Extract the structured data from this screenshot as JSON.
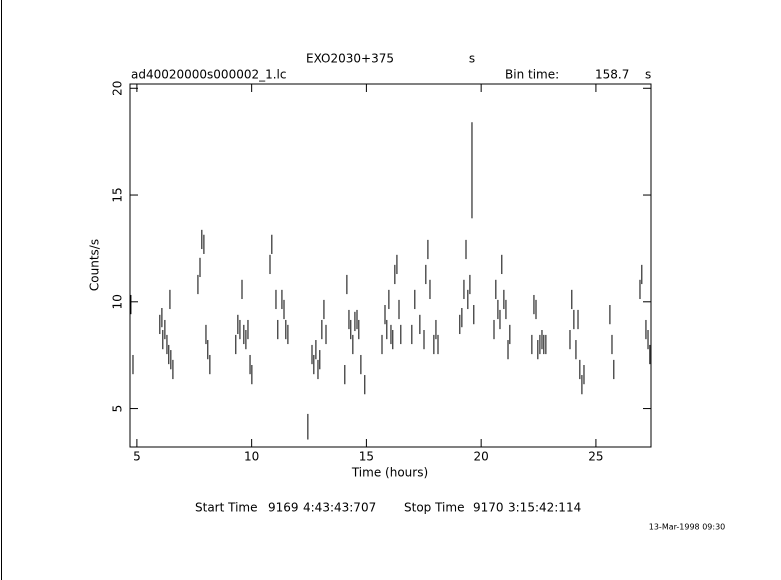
{
  "chart_data": {
    "type": "errorbar",
    "title": "EXO2030+375",
    "title_unit": "s",
    "filename": "ad40020000s000002_1.lc",
    "bin_time_label": "Bin time:",
    "bin_time": "158.7",
    "bin_time_unit": "s",
    "xlabel": "Time (hours)",
    "ylabel": "Counts/s",
    "xlim": [
      4.7,
      27.4
    ],
    "ylim": [
      3.2,
      20.2
    ],
    "xticks": [
      5,
      10,
      15,
      20,
      25
    ],
    "yticks": [
      5,
      10,
      15,
      20
    ],
    "color": "#000000",
    "x": [
      4.74,
      4.83,
      6.0,
      6.09,
      6.13,
      6.22,
      6.31,
      6.39,
      6.44,
      6.48,
      6.57,
      7.66,
      7.75,
      7.83,
      7.92,
      8.01,
      8.09,
      8.18,
      9.31,
      9.4,
      9.49,
      9.58,
      9.66,
      9.75,
      9.84,
      9.93,
      10.01,
      10.8,
      10.88,
      11.06,
      11.14,
      11.32,
      11.41,
      11.49,
      11.58,
      12.45,
      12.63,
      12.71,
      12.8,
      12.89,
      12.97,
      13.06,
      13.15,
      13.24,
      14.06,
      14.15,
      14.24,
      14.32,
      14.41,
      14.5,
      14.59,
      14.67,
      14.76,
      14.93,
      15.68,
      15.81,
      15.89,
      15.98,
      16.07,
      16.15,
      16.24,
      16.33,
      16.42,
      16.5,
      16.98,
      17.11,
      17.33,
      17.51,
      17.59,
      17.68,
      17.77,
      17.94,
      18.03,
      18.12,
      19.07,
      19.16,
      19.25,
      19.34,
      19.42,
      19.51,
      19.6,
      19.68,
      20.56,
      20.64,
      20.73,
      20.82,
      20.9,
      20.99,
      21.08,
      21.17,
      21.25,
      22.21,
      22.3,
      22.39,
      22.47,
      22.56,
      22.65,
      22.73,
      22.82,
      23.87,
      23.95,
      24.04,
      24.13,
      24.22,
      24.3,
      24.39,
      24.48,
      25.61,
      25.7,
      25.78,
      26.92,
      27.0,
      27.18,
      27.27,
      27.35
    ],
    "values": [
      9.87,
      7.06,
      8.94,
      9.26,
      8.23,
      8.7,
      8.0,
      7.53,
      10.11,
      7.29,
      6.83,
      10.81,
      11.61,
      12.92,
      12.69,
      8.47,
      7.76,
      7.06,
      8.0,
      8.94,
      8.7,
      10.58,
      8.47,
      8.23,
      8.7,
      7.06,
      6.59,
      11.75,
      12.69,
      10.11,
      8.7,
      10.11,
      9.64,
      8.7,
      8.47,
      4.15,
      7.53,
      7.06,
      7.76,
      6.83,
      7.29,
      8.7,
      9.64,
      8.47,
      6.59,
      10.81,
      9.17,
      8.7,
      8.0,
      9.08,
      9.17,
      8.7,
      7.06,
      6.12,
      8.0,
      9.4,
      8.7,
      10.11,
      8.47,
      8.23,
      11.28,
      11.75,
      9.64,
      8.47,
      8.47,
      10.11,
      8.94,
      8.23,
      11.28,
      12.45,
      10.58,
      8.0,
      8.7,
      8.0,
      8.94,
      9.26,
      10.58,
      12.45,
      10.11,
      10.81,
      16.16,
      9.4,
      8.7,
      10.58,
      9.64,
      9.17,
      11.75,
      10.11,
      9.64,
      7.76,
      8.47,
      8.0,
      9.87,
      9.64,
      7.76,
      8.0,
      8.23,
      8.0,
      8.0,
      8.23,
      10.11,
      9.17,
      7.76,
      9.17,
      6.83,
      6.12,
      6.59,
      9.4,
      8.0,
      6.83,
      10.58,
      11.28,
      8.7,
      8.23,
      7.53
    ],
    "errors": [
      0.45,
      0.45,
      0.45,
      0.45,
      0.45,
      0.45,
      0.45,
      0.45,
      0.45,
      0.45,
      0.45,
      0.45,
      0.45,
      0.45,
      0.45,
      0.45,
      0.45,
      0.45,
      0.45,
      0.45,
      0.45,
      0.45,
      0.45,
      0.45,
      0.45,
      0.45,
      0.45,
      0.45,
      0.45,
      0.45,
      0.45,
      0.45,
      0.45,
      0.45,
      0.45,
      0.6,
      0.45,
      0.45,
      0.45,
      0.45,
      0.45,
      0.45,
      0.45,
      0.45,
      0.45,
      0.45,
      0.45,
      0.45,
      0.45,
      0.45,
      0.45,
      0.45,
      0.45,
      0.45,
      0.45,
      0.45,
      0.45,
      0.45,
      0.45,
      0.45,
      0.45,
      0.45,
      0.45,
      0.45,
      0.45,
      0.45,
      0.45,
      0.45,
      0.45,
      0.45,
      0.45,
      0.45,
      0.45,
      0.45,
      0.45,
      0.45,
      0.45,
      0.45,
      0.45,
      0.45,
      2.25,
      0.45,
      0.45,
      0.45,
      0.45,
      0.45,
      0.45,
      0.45,
      0.45,
      0.45,
      0.45,
      0.45,
      0.45,
      0.45,
      0.45,
      0.45,
      0.45,
      0.45,
      0.45,
      0.45,
      0.45,
      0.45,
      0.45,
      0.45,
      0.45,
      0.45,
      0.45,
      0.45,
      0.45,
      0.45,
      0.45,
      0.45,
      0.45,
      0.45,
      0.45
    ],
    "footer": {
      "start_label": "Start Time",
      "start_day": "9169",
      "start_time": "4:43:43:707",
      "stop_label": "Stop Time",
      "stop_day": "9170",
      "stop_time": "3:15:42:114"
    },
    "timestamp": "13-Mar-1998 09:30"
  }
}
